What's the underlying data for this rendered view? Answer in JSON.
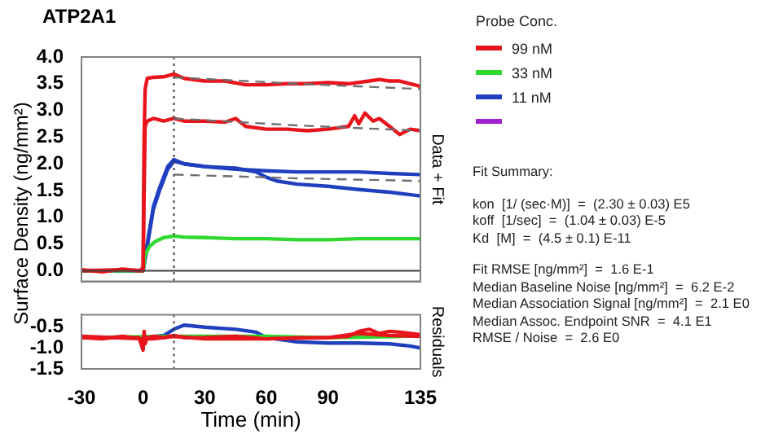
{
  "chart_data": [
    {
      "type": "line",
      "title": "ATP2A1",
      "ylabel": "Surface Density (ng/mm²)",
      "y2label": "Data + Fit",
      "legend_title": "Probe Conc.",
      "legend": "right",
      "marker": "none",
      "grid": false,
      "tick_labels": "y",
      "xlim": [
        -30,
        135
      ],
      "xticks": [
        -30,
        0,
        30,
        60,
        90,
        135
      ],
      "ylim": [
        -0.2,
        4.0
      ],
      "yticks": [
        {
          "value": 0,
          "label": "0.0"
        },
        {
          "value": 0.5,
          "label": "0.5"
        },
        {
          "value": 1,
          "label": "1.0"
        },
        {
          "value": 1.5,
          "label": "1.5"
        },
        {
          "value": 2,
          "label": "2.0"
        },
        {
          "value": 2.5,
          "label": "2.5"
        },
        {
          "value": 3,
          "label": "3.0"
        },
        {
          "value": 3.5,
          "label": "3.5"
        },
        {
          "value": 4,
          "label": "4.0"
        }
      ],
      "ref_lines": [
        {
          "axis": "y",
          "value": 0,
          "color": "#404040",
          "line_style": "solid"
        },
        {
          "axis": "x",
          "value": 15,
          "color": "#404040",
          "line_style": "dotted"
        }
      ],
      "series": [
        {
          "type": "line",
          "color": "#707070",
          "line_style": "dashed",
          "x": [
            15,
            75,
            135
          ],
          "values": [
            3.62,
            3.5,
            3.4
          ]
        },
        {
          "type": "line",
          "color": "#707070",
          "line_style": "dashed",
          "x": [
            15,
            75,
            135
          ],
          "values": [
            2.85,
            2.72,
            2.62
          ]
        },
        {
          "type": "line",
          "color": "#707070",
          "line_style": "dashed",
          "x": [
            15,
            75,
            135
          ],
          "values": [
            1.8,
            1.73,
            1.68
          ]
        },
        {
          "type": "line",
          "name": "99 nM",
          "color": "#e8141c",
          "x": [
            -30,
            -20,
            -10,
            -2,
            0,
            0.5,
            1,
            2,
            5,
            10,
            15,
            20,
            30,
            40,
            50,
            60,
            70,
            80,
            90,
            100,
            110,
            115,
            120,
            125,
            130,
            135
          ],
          "values": [
            0.02,
            -0.02,
            0.03,
            0,
            0.05,
            2.5,
            3.4,
            3.6,
            3.62,
            3.63,
            3.68,
            3.6,
            3.55,
            3.55,
            3.48,
            3.48,
            3.5,
            3.5,
            3.52,
            3.5,
            3.55,
            3.58,
            3.55,
            3.55,
            3.5,
            3.45
          ]
        },
        {
          "type": "line",
          "color": "#e8141c",
          "x": [
            -30,
            -10,
            0,
            0.5,
            1,
            2,
            5,
            10,
            15,
            20,
            30,
            40,
            45,
            50,
            60,
            70,
            80,
            90,
            100,
            103,
            105,
            108,
            112,
            115,
            120,
            125,
            130,
            135
          ],
          "values": [
            0,
            0.02,
            0,
            1.5,
            2.7,
            2.8,
            2.85,
            2.8,
            2.85,
            2.8,
            2.8,
            2.78,
            2.85,
            2.7,
            2.65,
            2.65,
            2.62,
            2.65,
            2.7,
            2.9,
            2.75,
            2.95,
            2.8,
            2.85,
            2.7,
            2.55,
            2.65,
            2.62
          ]
        },
        {
          "type": "line",
          "name": "33 nM",
          "color": "#2ed82e",
          "x": [
            -30,
            -10,
            0,
            1,
            3,
            6,
            10,
            15,
            20,
            30,
            45,
            60,
            75,
            90,
            105,
            120,
            135
          ],
          "values": [
            0,
            0,
            0,
            0.3,
            0.45,
            0.55,
            0.62,
            0.65,
            0.63,
            0.62,
            0.6,
            0.6,
            0.58,
            0.58,
            0.6,
            0.6,
            0.6
          ]
        },
        {
          "type": "line",
          "name": "11 nM",
          "color": "#1f3fbf",
          "x": [
            -30,
            -10,
            0,
            2,
            5,
            8,
            10,
            12,
            15,
            20,
            30,
            45,
            60,
            75,
            90,
            105,
            120,
            135
          ],
          "values": [
            0,
            0,
            0,
            0.5,
            1.2,
            1.55,
            1.75,
            1.95,
            2.08,
            2.0,
            1.95,
            1.9,
            1.87,
            1.85,
            1.85,
            1.85,
            1.82,
            1.8
          ]
        },
        {
          "type": "line",
          "color": "#1f3fbf",
          "x": [
            -30,
            -10,
            0,
            2,
            5,
            8,
            10,
            12,
            15,
            20,
            30,
            45,
            55,
            60,
            65,
            75,
            90,
            105,
            120,
            135
          ],
          "values": [
            0,
            0,
            0,
            0.45,
            1.15,
            1.5,
            1.7,
            1.9,
            2.05,
            2.0,
            1.95,
            1.92,
            1.85,
            1.75,
            1.68,
            1.62,
            1.58,
            1.52,
            1.47,
            1.4
          ]
        },
        {
          "color": "#a020d0"
        }
      ],
      "annotations": [
        "Fit Summary:",
        "kon  [1/ (sec·M)]  =  (2.30 ± 0.03) E5",
        "koff  [1/sec]  =  (1.04 ± 0.03) E-5",
        "Kd  [M]  =  (4.5 ± 0.1) E-11",
        "Fit RMSE [ng/mm²]  =  1.6 E-1",
        "Median Baseline Noise [ng/mm²]  =  6.2 E-2",
        "Median Association Signal [ng/mm²]  =  2.1 E0",
        "Median Assoc. Endpoint SNR  =  4.1 E1",
        "RMSE / Noise  =  2.6 E0"
      ]
    },
    {
      "type": "line",
      "xlabel": "Time (min)",
      "y2label": "Residuals",
      "legend": false,
      "marker": "none",
      "grid": false,
      "xlim": [
        -30,
        135
      ],
      "xticks": [
        -30,
        0,
        30,
        60,
        90,
        135
      ],
      "ylim": [
        -1.5,
        -0.2
      ],
      "yticks": [
        {
          "value": -0.5,
          "label": "-0.5"
        },
        {
          "value": -1,
          "label": "-1.0"
        },
        {
          "value": -1.5,
          "label": "-1.5"
        }
      ],
      "ref_lines": [
        {
          "axis": "x",
          "value": 15,
          "color": "#404040",
          "line_style": "dotted"
        }
      ],
      "series": [
        {
          "type": "line",
          "color": "#e8141c",
          "x": [
            -30,
            -20,
            -10,
            -5,
            -2,
            0,
            0.5,
            1,
            2,
            5,
            10,
            15,
            20,
            30,
            45,
            60,
            75,
            90,
            100,
            105,
            110,
            115,
            120,
            125,
            130,
            135
          ],
          "values": [
            -0.75,
            -0.78,
            -0.72,
            -0.75,
            -0.75,
            -1.05,
            -0.6,
            -0.9,
            -0.75,
            -0.72,
            -0.75,
            -0.7,
            -0.75,
            -0.75,
            -0.72,
            -0.78,
            -0.75,
            -0.75,
            -0.72,
            -0.6,
            -0.55,
            -0.65,
            -0.6,
            -0.62,
            -0.65,
            -0.68
          ]
        },
        {
          "type": "line",
          "color": "#e8141c",
          "x": [
            -30,
            0,
            5,
            15,
            30,
            60,
            90,
            105,
            120,
            135
          ],
          "values": [
            -0.72,
            -0.78,
            -0.78,
            -0.72,
            -0.78,
            -0.78,
            -0.75,
            -0.65,
            -0.7,
            -0.72
          ]
        },
        {
          "type": "line",
          "color": "#2ed82e",
          "x": [
            -30,
            0,
            15,
            30,
            60,
            90,
            120,
            135
          ],
          "values": [
            -0.75,
            -0.73,
            -0.72,
            -0.72,
            -0.72,
            -0.75,
            -0.73,
            -0.7
          ]
        },
        {
          "type": "line",
          "color": "#1f3fbf",
          "x": [
            -30,
            0,
            10,
            15,
            20,
            30,
            45,
            55,
            60,
            75,
            90,
            105,
            120,
            130,
            135
          ],
          "values": [
            -0.75,
            -0.75,
            -0.7,
            -0.55,
            -0.45,
            -0.5,
            -0.55,
            -0.62,
            -0.75,
            -0.85,
            -0.88,
            -0.88,
            -0.9,
            -0.95,
            -1.0
          ]
        }
      ]
    }
  ]
}
